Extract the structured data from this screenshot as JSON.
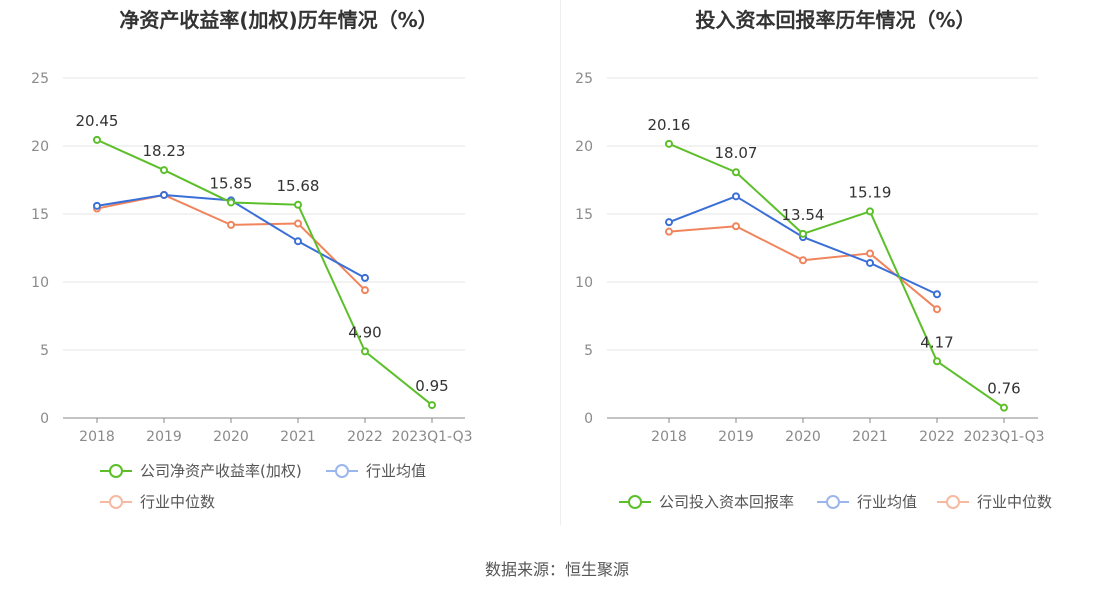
{
  "source": "数据来源：恒生聚源",
  "charts": [
    {
      "title": "净资产收益率(加权)历年情况（%）",
      "chart_data": {
        "type": "line",
        "title": "净资产收益率(加权)历年情况（%）",
        "categories": [
          "2018",
          "2019",
          "2020",
          "2021",
          "2022",
          "2023Q1-Q3"
        ],
        "yticks": [
          "0",
          "5",
          "10",
          "15",
          "20",
          "25"
        ],
        "ylim": [
          0,
          25
        ],
        "grid": true,
        "legend_position": "bottom",
        "series": [
          {
            "name": "公司净资产收益率(加权)",
            "color": "#5cbf2a",
            "values": [
              20.45,
              18.23,
              15.85,
              15.68,
              4.9,
              0.95
            ],
            "labels": [
              "20.45",
              "18.23",
              "15.85",
              "15.68",
              "4.90",
              "0.95"
            ]
          },
          {
            "name": "行业均值",
            "color": "#3a6fd8",
            "values": [
              15.6,
              16.4,
              16.0,
              13.0,
              10.3,
              null
            ]
          },
          {
            "name": "行业中位数",
            "color": "#f0845c",
            "values": [
              15.4,
              16.4,
              14.2,
              14.3,
              9.4,
              null
            ]
          }
        ]
      }
    },
    {
      "title": "投入资本回报率历年情况（%）",
      "chart_data": {
        "type": "line",
        "title": "投入资本回报率历年情况（%）",
        "categories": [
          "2018",
          "2019",
          "2020",
          "2021",
          "2022",
          "2023Q1-Q3"
        ],
        "yticks": [
          "0",
          "5",
          "10",
          "15",
          "20",
          "25"
        ],
        "ylim": [
          0,
          25
        ],
        "grid": true,
        "legend_position": "bottom",
        "series": [
          {
            "name": "公司投入资本回报率",
            "color": "#5cbf2a",
            "values": [
              20.16,
              18.07,
              13.54,
              15.19,
              4.17,
              0.76
            ],
            "labels": [
              "20.16",
              "18.07",
              "13.54",
              "15.19",
              "4.17",
              "0.76"
            ]
          },
          {
            "name": "行业均值",
            "color": "#3a6fd8",
            "values": [
              14.4,
              16.3,
              13.3,
              11.4,
              9.1,
              null
            ]
          },
          {
            "name": "行业中位数",
            "color": "#f0845c",
            "values": [
              13.7,
              14.1,
              11.6,
              12.1,
              8.0,
              null
            ]
          }
        ]
      }
    }
  ]
}
